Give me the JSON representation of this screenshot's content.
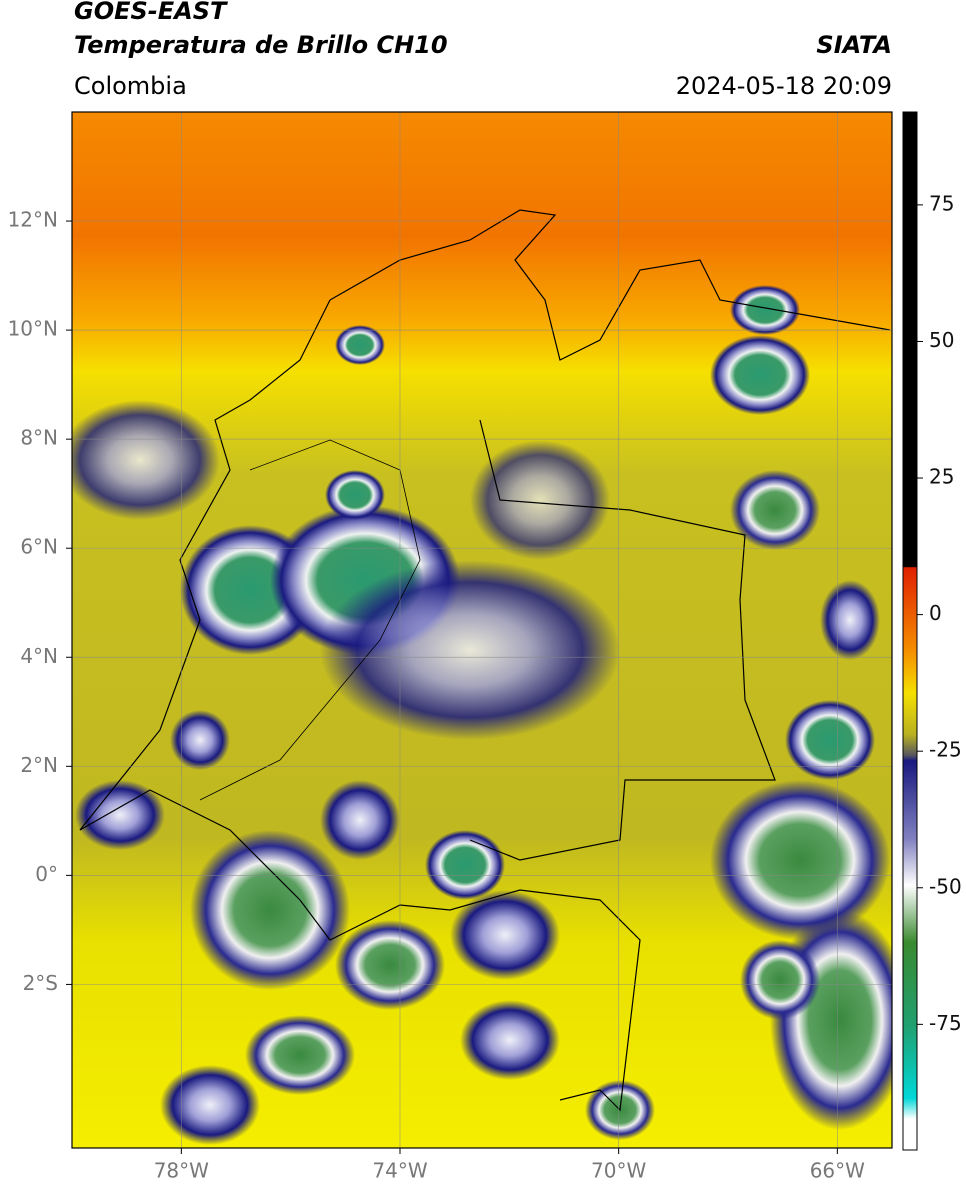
{
  "header": {
    "title_line1": "GOES-EAST",
    "title_line2": "Temperatura de Brillo CH10",
    "region": "Colombia",
    "source": "SIATA",
    "datetime": "2024-05-18 20:09"
  },
  "map": {
    "xlim": [
      -80,
      -65
    ],
    "ylim": [
      -5,
      14
    ],
    "xticks": [
      {
        "value": -78,
        "label": "78°W"
      },
      {
        "value": -74,
        "label": "74°W"
      },
      {
        "value": -70,
        "label": "70°W"
      },
      {
        "value": -66,
        "label": "66°W"
      }
    ],
    "yticks": [
      {
        "value": 12,
        "label": "12°N"
      },
      {
        "value": 10,
        "label": "10°N"
      },
      {
        "value": 8,
        "label": "8°N"
      },
      {
        "value": 6,
        "label": "6°N"
      },
      {
        "value": 4,
        "label": "4°N"
      },
      {
        "value": 2,
        "label": "2°N"
      },
      {
        "value": 0,
        "label": "0°"
      },
      {
        "value": -2,
        "label": "2°S"
      }
    ]
  },
  "colorbar": {
    "lim": [
      -98,
      92
    ],
    "ticks": [
      75,
      50,
      25,
      0,
      -25,
      -50,
      -75
    ]
  }
}
